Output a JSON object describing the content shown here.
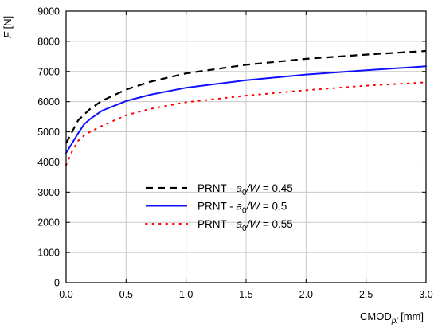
{
  "chart_data": {
    "type": "line",
    "xlabel": {
      "main": "CMOD",
      "sub": "pl",
      "unit": " [mm]"
    },
    "ylabel": {
      "main": "F",
      "unit": " [N]"
    },
    "xlim": [
      0,
      3.0
    ],
    "ylim": [
      0,
      9000
    ],
    "xticks": [
      0.0,
      0.5,
      1.0,
      1.5,
      2.0,
      2.5,
      3.0
    ],
    "xtick_labels": [
      "0.0",
      "0.5",
      "1.0",
      "1.5",
      "2.0",
      "2.5",
      "3.0"
    ],
    "yticks": [
      0,
      1000,
      2000,
      3000,
      4000,
      5000,
      6000,
      7000,
      8000,
      9000
    ],
    "ytick_labels": [
      "0",
      "1000",
      "2000",
      "3000",
      "4000",
      "5000",
      "6000",
      "7000",
      "8000",
      "9000"
    ],
    "grid": true,
    "legend_position": "center-left",
    "series": [
      {
        "name": "PRNT - a0/W = 0.45",
        "label": {
          "prefix": "PRNT - ",
          "var": "a",
          "sub": "0",
          "rest": "/W",
          "value": " = 0.45"
        },
        "color": "#000000",
        "style": "dashed",
        "x": [
          0,
          0.05,
          0.1,
          0.2,
          0.3,
          0.5,
          0.7,
          1.0,
          1.5,
          2.0,
          2.5,
          3.0
        ],
        "y": [
          4620,
          5000,
          5380,
          5760,
          6030,
          6400,
          6660,
          6940,
          7220,
          7420,
          7560,
          7680
        ]
      },
      {
        "name": "PRNT - a0/W = 0.5",
        "label": {
          "prefix": "PRNT - ",
          "var": "a",
          "sub": "0",
          "rest": "/W",
          "value": " = 0.5"
        },
        "color": "#1010ff",
        "style": "solid",
        "x": [
          0,
          0.05,
          0.1,
          0.15,
          0.2,
          0.3,
          0.5,
          0.7,
          1.0,
          1.5,
          2.0,
          2.5,
          3.0
        ],
        "y": [
          4300,
          4620,
          4950,
          5250,
          5420,
          5700,
          6020,
          6230,
          6460,
          6710,
          6900,
          7040,
          7170
        ]
      },
      {
        "name": "PRNT - a0/W = 0.55",
        "label": {
          "prefix": "PRNT - ",
          "var": "a",
          "sub": "0",
          "rest": "/W",
          "value": " = 0.55"
        },
        "color": "#ff0000",
        "style": "dotted",
        "x": [
          0,
          0.05,
          0.1,
          0.15,
          0.2,
          0.3,
          0.5,
          0.7,
          1.0,
          1.5,
          2.0,
          2.5,
          3.0
        ],
        "y": [
          3900,
          4350,
          4700,
          4880,
          5000,
          5200,
          5550,
          5760,
          5980,
          6200,
          6380,
          6530,
          6640
        ]
      }
    ]
  }
}
